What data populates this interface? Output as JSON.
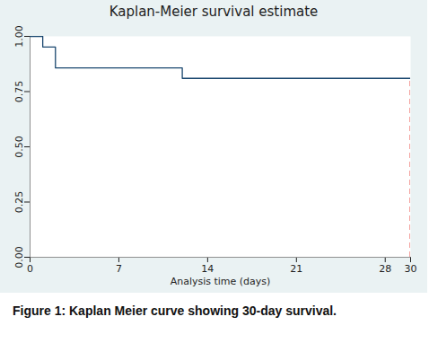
{
  "chart_data": {
    "type": "step",
    "title": "Kaplan-Meier survival estimate",
    "x_label": "Analysis time (days)",
    "caption": "Figure 1: Kaplan Meier curve showing 30-day survival.",
    "x": [
      0,
      1,
      2,
      12,
      30
    ],
    "values": [
      1,
      0.952,
      0.857,
      0.81,
      0.81
    ],
    "color": "#1a476f",
    "line_style": "solid",
    "xlim": [
      0,
      30
    ],
    "xticks": [
      0,
      7,
      14,
      21,
      28,
      30
    ],
    "ylim": [
      0,
      1
    ],
    "yticks": [
      {
        "value": 0,
        "label": "0.00"
      },
      {
        "value": 0.25,
        "label": "0.25"
      },
      {
        "value": 0.5,
        "label": "0.50"
      },
      {
        "value": 0.75,
        "label": "0.75"
      },
      {
        "value": 1,
        "label": "1.00"
      }
    ],
    "grid": false,
    "reference_line": {
      "x": 30,
      "color": "#e8413a",
      "line_style": "dashed"
    }
  }
}
